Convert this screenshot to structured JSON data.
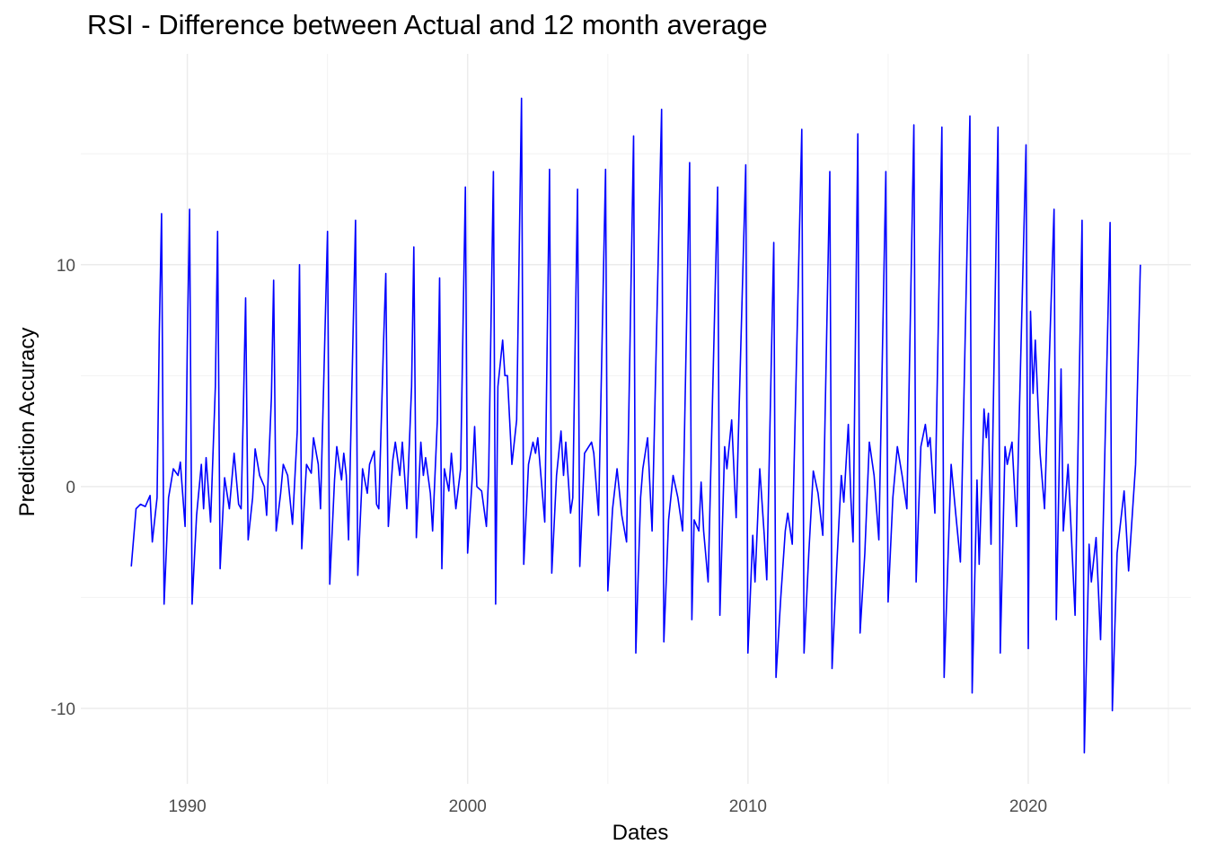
{
  "chart_data": {
    "type": "line",
    "title": "RSI - Difference between Actual and 12 month average",
    "xlabel": "Dates",
    "ylabel": "Prediction Accuracy",
    "xlim": [
      1986.2,
      2025.8
    ],
    "ylim": [
      -13.4,
      19.5
    ],
    "x_ticks": [
      1990,
      2000,
      2010,
      2020
    ],
    "x_tick_labels": [
      "1990",
      "2000",
      "2010",
      "2020"
    ],
    "y_ticks": [
      -10,
      0,
      10
    ],
    "y_tick_labels": [
      "-10",
      "0",
      "10"
    ],
    "grid": true,
    "legend": "none",
    "series": [
      {
        "color": "#0000ff",
        "points": [
          [
            1988.0,
            -3.6
          ],
          [
            1988.17,
            -1.0
          ],
          [
            1988.33,
            -0.8
          ],
          [
            1988.5,
            -0.9
          ],
          [
            1988.67,
            -0.4
          ],
          [
            1988.75,
            -2.5
          ],
          [
            1988.92,
            -0.5
          ],
          [
            1989.0,
            7.0
          ],
          [
            1989.08,
            12.3
          ],
          [
            1989.17,
            -5.3
          ],
          [
            1989.33,
            -0.5
          ],
          [
            1989.5,
            0.8
          ],
          [
            1989.67,
            0.5
          ],
          [
            1989.75,
            1.1
          ],
          [
            1989.92,
            -1.8
          ],
          [
            1990.0,
            6.5
          ],
          [
            1990.08,
            12.5
          ],
          [
            1990.17,
            -5.3
          ],
          [
            1990.33,
            -1.3
          ],
          [
            1990.5,
            1.0
          ],
          [
            1990.58,
            -1.0
          ],
          [
            1990.67,
            1.3
          ],
          [
            1990.83,
            -1.6
          ],
          [
            1991.0,
            4.5
          ],
          [
            1991.08,
            11.5
          ],
          [
            1991.17,
            -3.7
          ],
          [
            1991.33,
            0.4
          ],
          [
            1991.5,
            -1.0
          ],
          [
            1991.67,
            1.5
          ],
          [
            1991.83,
            -0.8
          ],
          [
            1991.92,
            -1.0
          ],
          [
            1992.0,
            3.5
          ],
          [
            1992.08,
            8.5
          ],
          [
            1992.17,
            -2.4
          ],
          [
            1992.33,
            -0.5
          ],
          [
            1992.42,
            1.7
          ],
          [
            1992.58,
            0.5
          ],
          [
            1992.75,
            0.0
          ],
          [
            1992.83,
            -1.3
          ],
          [
            1993.0,
            4.0
          ],
          [
            1993.08,
            9.3
          ],
          [
            1993.17,
            -2.0
          ],
          [
            1993.33,
            -0.3
          ],
          [
            1993.42,
            1.0
          ],
          [
            1993.58,
            0.5
          ],
          [
            1993.75,
            -1.7
          ],
          [
            1993.92,
            2.5
          ],
          [
            1994.0,
            10.0
          ],
          [
            1994.08,
            -2.8
          ],
          [
            1994.25,
            1.0
          ],
          [
            1994.42,
            0.6
          ],
          [
            1994.5,
            2.2
          ],
          [
            1994.67,
            1.0
          ],
          [
            1994.75,
            -1.0
          ],
          [
            1995.0,
            11.5
          ],
          [
            1995.08,
            -4.4
          ],
          [
            1995.25,
            0.3
          ],
          [
            1995.33,
            1.8
          ],
          [
            1995.5,
            0.3
          ],
          [
            1995.58,
            1.5
          ],
          [
            1995.67,
            0.5
          ],
          [
            1995.75,
            -2.4
          ],
          [
            1996.0,
            12.0
          ],
          [
            1996.08,
            -4.0
          ],
          [
            1996.25,
            0.8
          ],
          [
            1996.42,
            -0.3
          ],
          [
            1996.5,
            1.0
          ],
          [
            1996.67,
            1.6
          ],
          [
            1996.75,
            -0.8
          ],
          [
            1996.83,
            -1.0
          ],
          [
            1997.0,
            6.5
          ],
          [
            1997.08,
            9.6
          ],
          [
            1997.17,
            -1.8
          ],
          [
            1997.33,
            1.2
          ],
          [
            1997.42,
            2.0
          ],
          [
            1997.58,
            0.5
          ],
          [
            1997.67,
            2.0
          ],
          [
            1997.83,
            -1.0
          ],
          [
            1998.0,
            4.5
          ],
          [
            1998.08,
            10.8
          ],
          [
            1998.17,
            -2.3
          ],
          [
            1998.33,
            2.0
          ],
          [
            1998.42,
            0.5
          ],
          [
            1998.5,
            1.3
          ],
          [
            1998.67,
            -0.3
          ],
          [
            1998.75,
            -2.0
          ],
          [
            1998.92,
            3.0
          ],
          [
            1999.0,
            9.4
          ],
          [
            1999.08,
            -3.7
          ],
          [
            1999.17,
            0.8
          ],
          [
            1999.33,
            -0.2
          ],
          [
            1999.42,
            1.5
          ],
          [
            1999.58,
            -1.0
          ],
          [
            1999.75,
            0.8
          ],
          [
            1999.92,
            13.5
          ],
          [
            2000.0,
            -3.0
          ],
          [
            2000.17,
            0.5
          ],
          [
            2000.25,
            2.7
          ],
          [
            2000.33,
            0.0
          ],
          [
            2000.5,
            -0.2
          ],
          [
            2000.67,
            -1.8
          ],
          [
            2000.75,
            0.5
          ],
          [
            2000.92,
            14.2
          ],
          [
            2001.0,
            -5.3
          ],
          [
            2001.08,
            4.5
          ],
          [
            2001.25,
            6.6
          ],
          [
            2001.33,
            5.0
          ],
          [
            2001.42,
            5.0
          ],
          [
            2001.58,
            1.0
          ],
          [
            2001.75,
            3.0
          ],
          [
            2001.92,
            17.5
          ],
          [
            2002.0,
            -3.5
          ],
          [
            2002.17,
            1.0
          ],
          [
            2002.33,
            2.0
          ],
          [
            2002.42,
            1.5
          ],
          [
            2002.5,
            2.2
          ],
          [
            2002.75,
            -1.6
          ],
          [
            2002.92,
            14.3
          ],
          [
            2003.0,
            -3.9
          ],
          [
            2003.17,
            0.5
          ],
          [
            2003.33,
            2.5
          ],
          [
            2003.42,
            0.5
          ],
          [
            2003.5,
            2.0
          ],
          [
            2003.67,
            -1.2
          ],
          [
            2003.75,
            -0.5
          ],
          [
            2003.92,
            13.4
          ],
          [
            2004.0,
            -3.6
          ],
          [
            2004.17,
            1.5
          ],
          [
            2004.42,
            2.0
          ],
          [
            2004.5,
            1.5
          ],
          [
            2004.67,
            -1.3
          ],
          [
            2004.92,
            14.3
          ],
          [
            2005.0,
            -4.7
          ],
          [
            2005.17,
            -1.0
          ],
          [
            2005.33,
            0.8
          ],
          [
            2005.5,
            -1.3
          ],
          [
            2005.67,
            -2.5
          ],
          [
            2005.92,
            15.8
          ],
          [
            2006.0,
            -7.5
          ],
          [
            2006.17,
            -0.5
          ],
          [
            2006.25,
            0.8
          ],
          [
            2006.42,
            2.2
          ],
          [
            2006.58,
            -2.0
          ],
          [
            2006.92,
            17.0
          ],
          [
            2007.0,
            -7.0
          ],
          [
            2007.17,
            -1.5
          ],
          [
            2007.33,
            0.5
          ],
          [
            2007.5,
            -0.5
          ],
          [
            2007.67,
            -2.0
          ],
          [
            2007.92,
            14.6
          ],
          [
            2008.0,
            -6.0
          ],
          [
            2008.08,
            -1.5
          ],
          [
            2008.25,
            -2.0
          ],
          [
            2008.33,
            0.2
          ],
          [
            2008.42,
            -2.0
          ],
          [
            2008.58,
            -4.3
          ],
          [
            2008.92,
            13.5
          ],
          [
            2009.0,
            -5.8
          ],
          [
            2009.17,
            1.8
          ],
          [
            2009.25,
            0.8
          ],
          [
            2009.42,
            3.0
          ],
          [
            2009.58,
            -1.4
          ],
          [
            2009.92,
            14.5
          ],
          [
            2010.0,
            -7.5
          ],
          [
            2010.17,
            -2.2
          ],
          [
            2010.25,
            -4.3
          ],
          [
            2010.42,
            0.8
          ],
          [
            2010.58,
            -2.2
          ],
          [
            2010.67,
            -4.2
          ],
          [
            2010.92,
            11.0
          ],
          [
            2011.0,
            -8.6
          ],
          [
            2011.17,
            -5.0
          ],
          [
            2011.33,
            -2.0
          ],
          [
            2011.42,
            -1.2
          ],
          [
            2011.58,
            -2.6
          ],
          [
            2011.92,
            16.1
          ],
          [
            2012.0,
            -7.5
          ],
          [
            2012.17,
            -3.0
          ],
          [
            2012.33,
            0.7
          ],
          [
            2012.5,
            -0.3
          ],
          [
            2012.67,
            -2.2
          ],
          [
            2012.92,
            14.2
          ],
          [
            2013.0,
            -8.2
          ],
          [
            2013.17,
            -3.5
          ],
          [
            2013.33,
            0.5
          ],
          [
            2013.42,
            -0.7
          ],
          [
            2013.58,
            2.8
          ],
          [
            2013.67,
            -0.5
          ],
          [
            2013.75,
            -2.5
          ],
          [
            2013.92,
            15.9
          ],
          [
            2014.0,
            -6.6
          ],
          [
            2014.17,
            -3.0
          ],
          [
            2014.33,
            2.0
          ],
          [
            2014.5,
            0.5
          ],
          [
            2014.67,
            -2.4
          ],
          [
            2014.92,
            14.2
          ],
          [
            2015.0,
            -5.2
          ],
          [
            2015.17,
            -0.5
          ],
          [
            2015.33,
            1.8
          ],
          [
            2015.5,
            0.5
          ],
          [
            2015.67,
            -1.0
          ],
          [
            2015.92,
            16.3
          ],
          [
            2016.0,
            -4.3
          ],
          [
            2016.17,
            1.8
          ],
          [
            2016.33,
            2.8
          ],
          [
            2016.42,
            1.8
          ],
          [
            2016.5,
            2.2
          ],
          [
            2016.67,
            -1.2
          ],
          [
            2016.92,
            16.2
          ],
          [
            2017.0,
            -8.6
          ],
          [
            2017.17,
            -2.0
          ],
          [
            2017.25,
            1.0
          ],
          [
            2017.42,
            -1.3
          ],
          [
            2017.58,
            -3.4
          ],
          [
            2017.92,
            16.7
          ],
          [
            2018.0,
            -9.3
          ],
          [
            2018.17,
            0.3
          ],
          [
            2018.25,
            -3.5
          ],
          [
            2018.42,
            3.5
          ],
          [
            2018.5,
            2.2
          ],
          [
            2018.58,
            3.3
          ],
          [
            2018.67,
            -2.6
          ],
          [
            2018.92,
            16.2
          ],
          [
            2019.0,
            -7.5
          ],
          [
            2019.17,
            1.8
          ],
          [
            2019.25,
            1.0
          ],
          [
            2019.42,
            2.0
          ],
          [
            2019.58,
            -1.8
          ],
          [
            2019.92,
            15.4
          ],
          [
            2020.0,
            -7.3
          ],
          [
            2020.08,
            7.9
          ],
          [
            2020.17,
            4.2
          ],
          [
            2020.25,
            6.6
          ],
          [
            2020.42,
            1.5
          ],
          [
            2020.58,
            -1.0
          ],
          [
            2020.92,
            12.5
          ],
          [
            2021.0,
            -6.0
          ],
          [
            2021.17,
            5.3
          ],
          [
            2021.25,
            -2.0
          ],
          [
            2021.42,
            1.0
          ],
          [
            2021.67,
            -5.8
          ],
          [
            2021.92,
            12.0
          ],
          [
            2022.0,
            -12.0
          ],
          [
            2022.17,
            -2.6
          ],
          [
            2022.25,
            -4.3
          ],
          [
            2022.42,
            -2.3
          ],
          [
            2022.58,
            -6.9
          ],
          [
            2022.92,
            11.9
          ],
          [
            2023.0,
            -10.1
          ],
          [
            2023.17,
            -3.0
          ],
          [
            2023.42,
            -0.2
          ],
          [
            2023.58,
            -3.8
          ],
          [
            2023.83,
            1.0
          ],
          [
            2024.0,
            10.0
          ]
        ]
      }
    ]
  }
}
